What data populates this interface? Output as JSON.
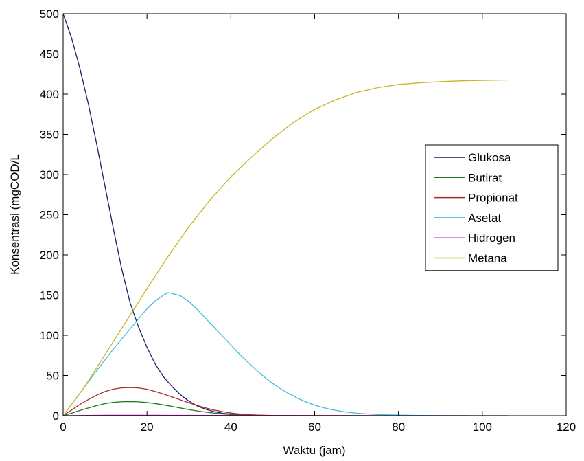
{
  "chart_data": {
    "type": "line",
    "title": "",
    "xlabel": "Waktu (jam)",
    "ylabel": "Konsentrasi (mgCOD/L",
    "xlim": [
      0,
      120
    ],
    "ylim": [
      0,
      500
    ],
    "xticks": [
      0,
      20,
      40,
      60,
      80,
      100,
      120
    ],
    "yticks": [
      0,
      50,
      100,
      150,
      200,
      250,
      300,
      350,
      400,
      450,
      500
    ],
    "grid": false,
    "legend_position": "right",
    "series": [
      {
        "name": "Glukosa",
        "color": "#1a1a6e",
        "x": [
          0,
          2,
          4,
          6,
          8,
          10,
          12,
          14,
          16,
          18,
          20,
          22,
          24,
          26,
          28,
          30,
          32,
          34,
          36,
          38,
          40,
          42,
          45
        ],
        "y": [
          500,
          470,
          432,
          388,
          338,
          285,
          232,
          182,
          140,
          110,
          85,
          64,
          48,
          36,
          26,
          18,
          12,
          8,
          5,
          3,
          2,
          1,
          0
        ]
      },
      {
        "name": "Butirat",
        "color": "#1a7a1a",
        "x": [
          0,
          2,
          4,
          6,
          8,
          10,
          12,
          14,
          16,
          18,
          20,
          22,
          24,
          26,
          28,
          30,
          32,
          34,
          36,
          38,
          40,
          42,
          44,
          46
        ],
        "y": [
          0,
          3,
          6.5,
          9.5,
          12.5,
          15,
          16.5,
          17.3,
          17.5,
          17.2,
          16.3,
          15,
          13.3,
          11.4,
          9.5,
          7.6,
          5.9,
          4.4,
          3.2,
          2.2,
          1.4,
          0.8,
          0.3,
          0
        ]
      },
      {
        "name": "Propionat",
        "color": "#a52a2a",
        "x": [
          0,
          2,
          4,
          6,
          8,
          10,
          12,
          14,
          16,
          18,
          20,
          22,
          24,
          26,
          28,
          30,
          32,
          34,
          36,
          38,
          40,
          42,
          44,
          46,
          50,
          60,
          80,
          97
        ],
        "y": [
          0,
          7,
          14,
          20,
          25.5,
          30,
          33,
          34.6,
          35,
          34.5,
          32.8,
          30,
          26.8,
          23.2,
          19.6,
          16,
          12.6,
          9.6,
          7,
          5,
          3.3,
          2.1,
          1.3,
          0.8,
          0.3,
          0.1,
          0,
          0
        ]
      },
      {
        "name": "Asetat",
        "color": "#40bcd8",
        "x": [
          0,
          4,
          8,
          12,
          16,
          20,
          22,
          24,
          25,
          26,
          28,
          30,
          32,
          34,
          36,
          38,
          40,
          42,
          44,
          46,
          48,
          50,
          52,
          54,
          56,
          58,
          60,
          62,
          64,
          66,
          68,
          70,
          72,
          74,
          76,
          78,
          80,
          84,
          88,
          92,
          96,
          100,
          106
        ],
        "y": [
          0,
          28,
          56,
          83,
          108,
          133,
          143,
          150,
          153,
          152,
          149,
          142,
          132,
          121,
          110,
          99,
          88,
          77,
          67,
          57,
          48,
          40,
          33,
          27,
          21.5,
          17,
          13,
          10,
          7.6,
          5.7,
          4.2,
          3.1,
          2.3,
          1.7,
          1.2,
          0.9,
          0.7,
          0.4,
          0.2,
          0.1,
          0,
          0,
          0
        ]
      },
      {
        "name": "Hidrogen",
        "color": "#b020b0",
        "x": [
          0,
          10,
          20,
          40,
          60,
          80,
          106
        ],
        "y": [
          0,
          0.5,
          0.5,
          0.3,
          0.1,
          0,
          0
        ]
      },
      {
        "name": "Metana",
        "color": "#c8b41e",
        "x": [
          0,
          5,
          10,
          15,
          20,
          25,
          30,
          35,
          40,
          45,
          50,
          55,
          60,
          65,
          70,
          75,
          80,
          85,
          90,
          95,
          100,
          106
        ],
        "y": [
          0,
          35,
          76,
          117,
          158,
          198,
          235,
          268,
          297,
          322,
          345,
          365,
          381,
          393,
          402,
          408,
          412,
          414,
          415.5,
          416.5,
          417,
          417.5
        ]
      }
    ]
  }
}
